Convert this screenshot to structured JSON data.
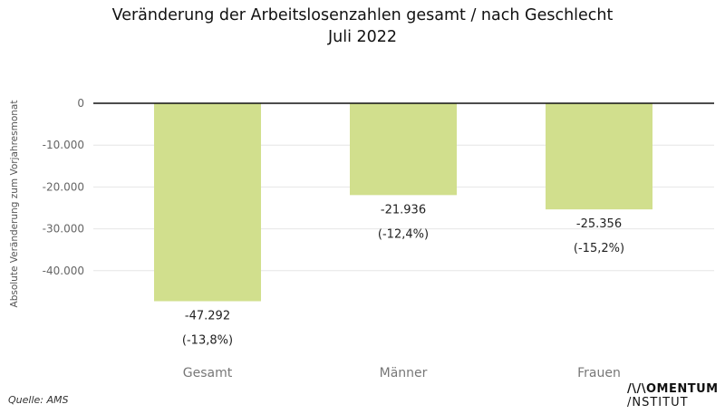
{
  "chart_data": {
    "type": "bar",
    "title_line1": "Veränderung der Arbeitslosenzahlen gesamt / nach Geschlecht",
    "title_line2": "Juli 2022",
    "ylabel": "Absolute Veränderung zum Vorjahresmonat",
    "categories": [
      "Gesamt",
      "Männer",
      "Frauen"
    ],
    "values": [
      -47292,
      -21936,
      -25356
    ],
    "value_labels": [
      "-47.292",
      "-21.936",
      "-25.356"
    ],
    "percent_labels": [
      "(-13,8%)",
      "(-12,4%)",
      "(-15,2%)"
    ],
    "yticks": [
      0,
      -10000,
      -20000,
      -30000,
      -40000
    ],
    "ytick_labels": [
      "0",
      "-10.000",
      "-20.000",
      "-30.000",
      "-40.000"
    ],
    "ylim": [
      -52000,
      0
    ],
    "bar_color": "#d1df8d",
    "grid": true
  },
  "footer": {
    "source": "Quelle: AMS",
    "logo_line1": "/\\/\\OMENTUM",
    "logo_line2": "/NSTITUT"
  }
}
